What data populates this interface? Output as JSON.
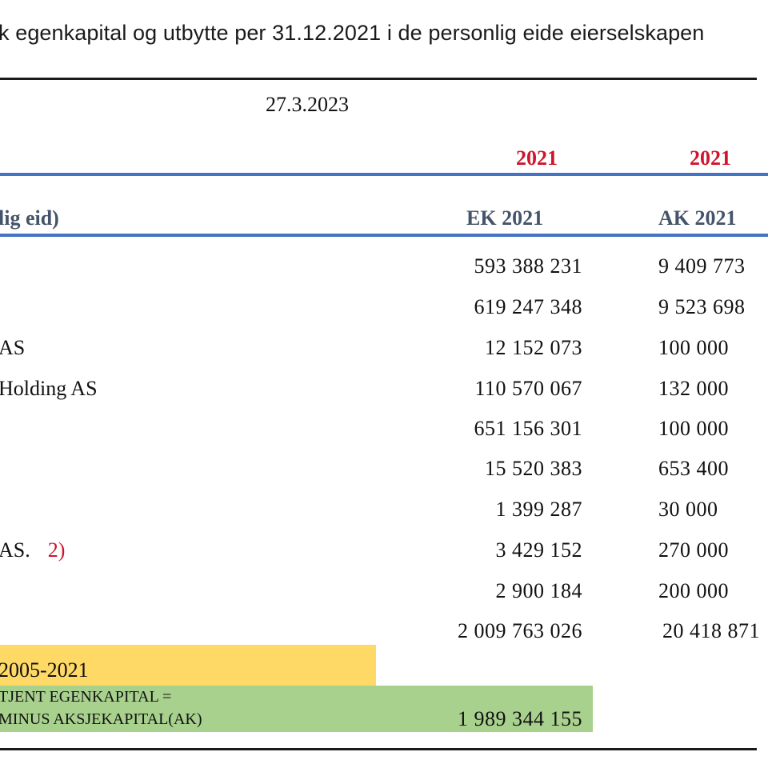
{
  "heading": "k egenkapital og utbytte per 31.12.2021 i de personlig eide eierselskapen",
  "date": "27.3.2023",
  "years": [
    "2021",
    "2021"
  ],
  "columns": {
    "owner": "lig eid)",
    "ek": "EK 2021",
    "ak": "AK 2021"
  },
  "rows": [
    {
      "label": "",
      "note": "",
      "ek": "593 388 231",
      "ak": "9 409 773"
    },
    {
      "label": "",
      "note": "",
      "ek": "619 247 348",
      "ak": "9 523 698"
    },
    {
      "label": "AS",
      "note": "",
      "ek": "12 152 073",
      "ak": "100 000"
    },
    {
      "label": "Holding AS",
      "note": "",
      "ek": "110 570 067",
      "ak": "132 000"
    },
    {
      "label": "",
      "note": "",
      "ek": "651 156 301",
      "ak": "100 000"
    },
    {
      "label": "",
      "note": "",
      "ek": "15 520 383",
      "ak": "653 400"
    },
    {
      "label": "",
      "note": "",
      "ek": "1 399 287",
      "ak": "30 000"
    },
    {
      "label": "AS.",
      "note": "2)",
      "ek": "3 429 152",
      "ak": "270 000"
    },
    {
      "label": "",
      "note": "",
      "ek": "2 900 184",
      "ak": "200 000"
    }
  ],
  "totals": {
    "ek": "2 009 763 026",
    "ak": "20 418 871"
  },
  "period_label": "2005-2021",
  "earned_equity": {
    "line1": "TJENT EGENKAPITAL =",
    "line2": "MINUS AKSJEKAPITAL(AK)",
    "value": "1 989 344 155"
  },
  "colors": {
    "year_red": "#d0142b",
    "header_slate": "#44546a",
    "rule_blue": "#4472c4",
    "highlight_yellow": "#ffd966",
    "highlight_green": "#a9d18e"
  }
}
